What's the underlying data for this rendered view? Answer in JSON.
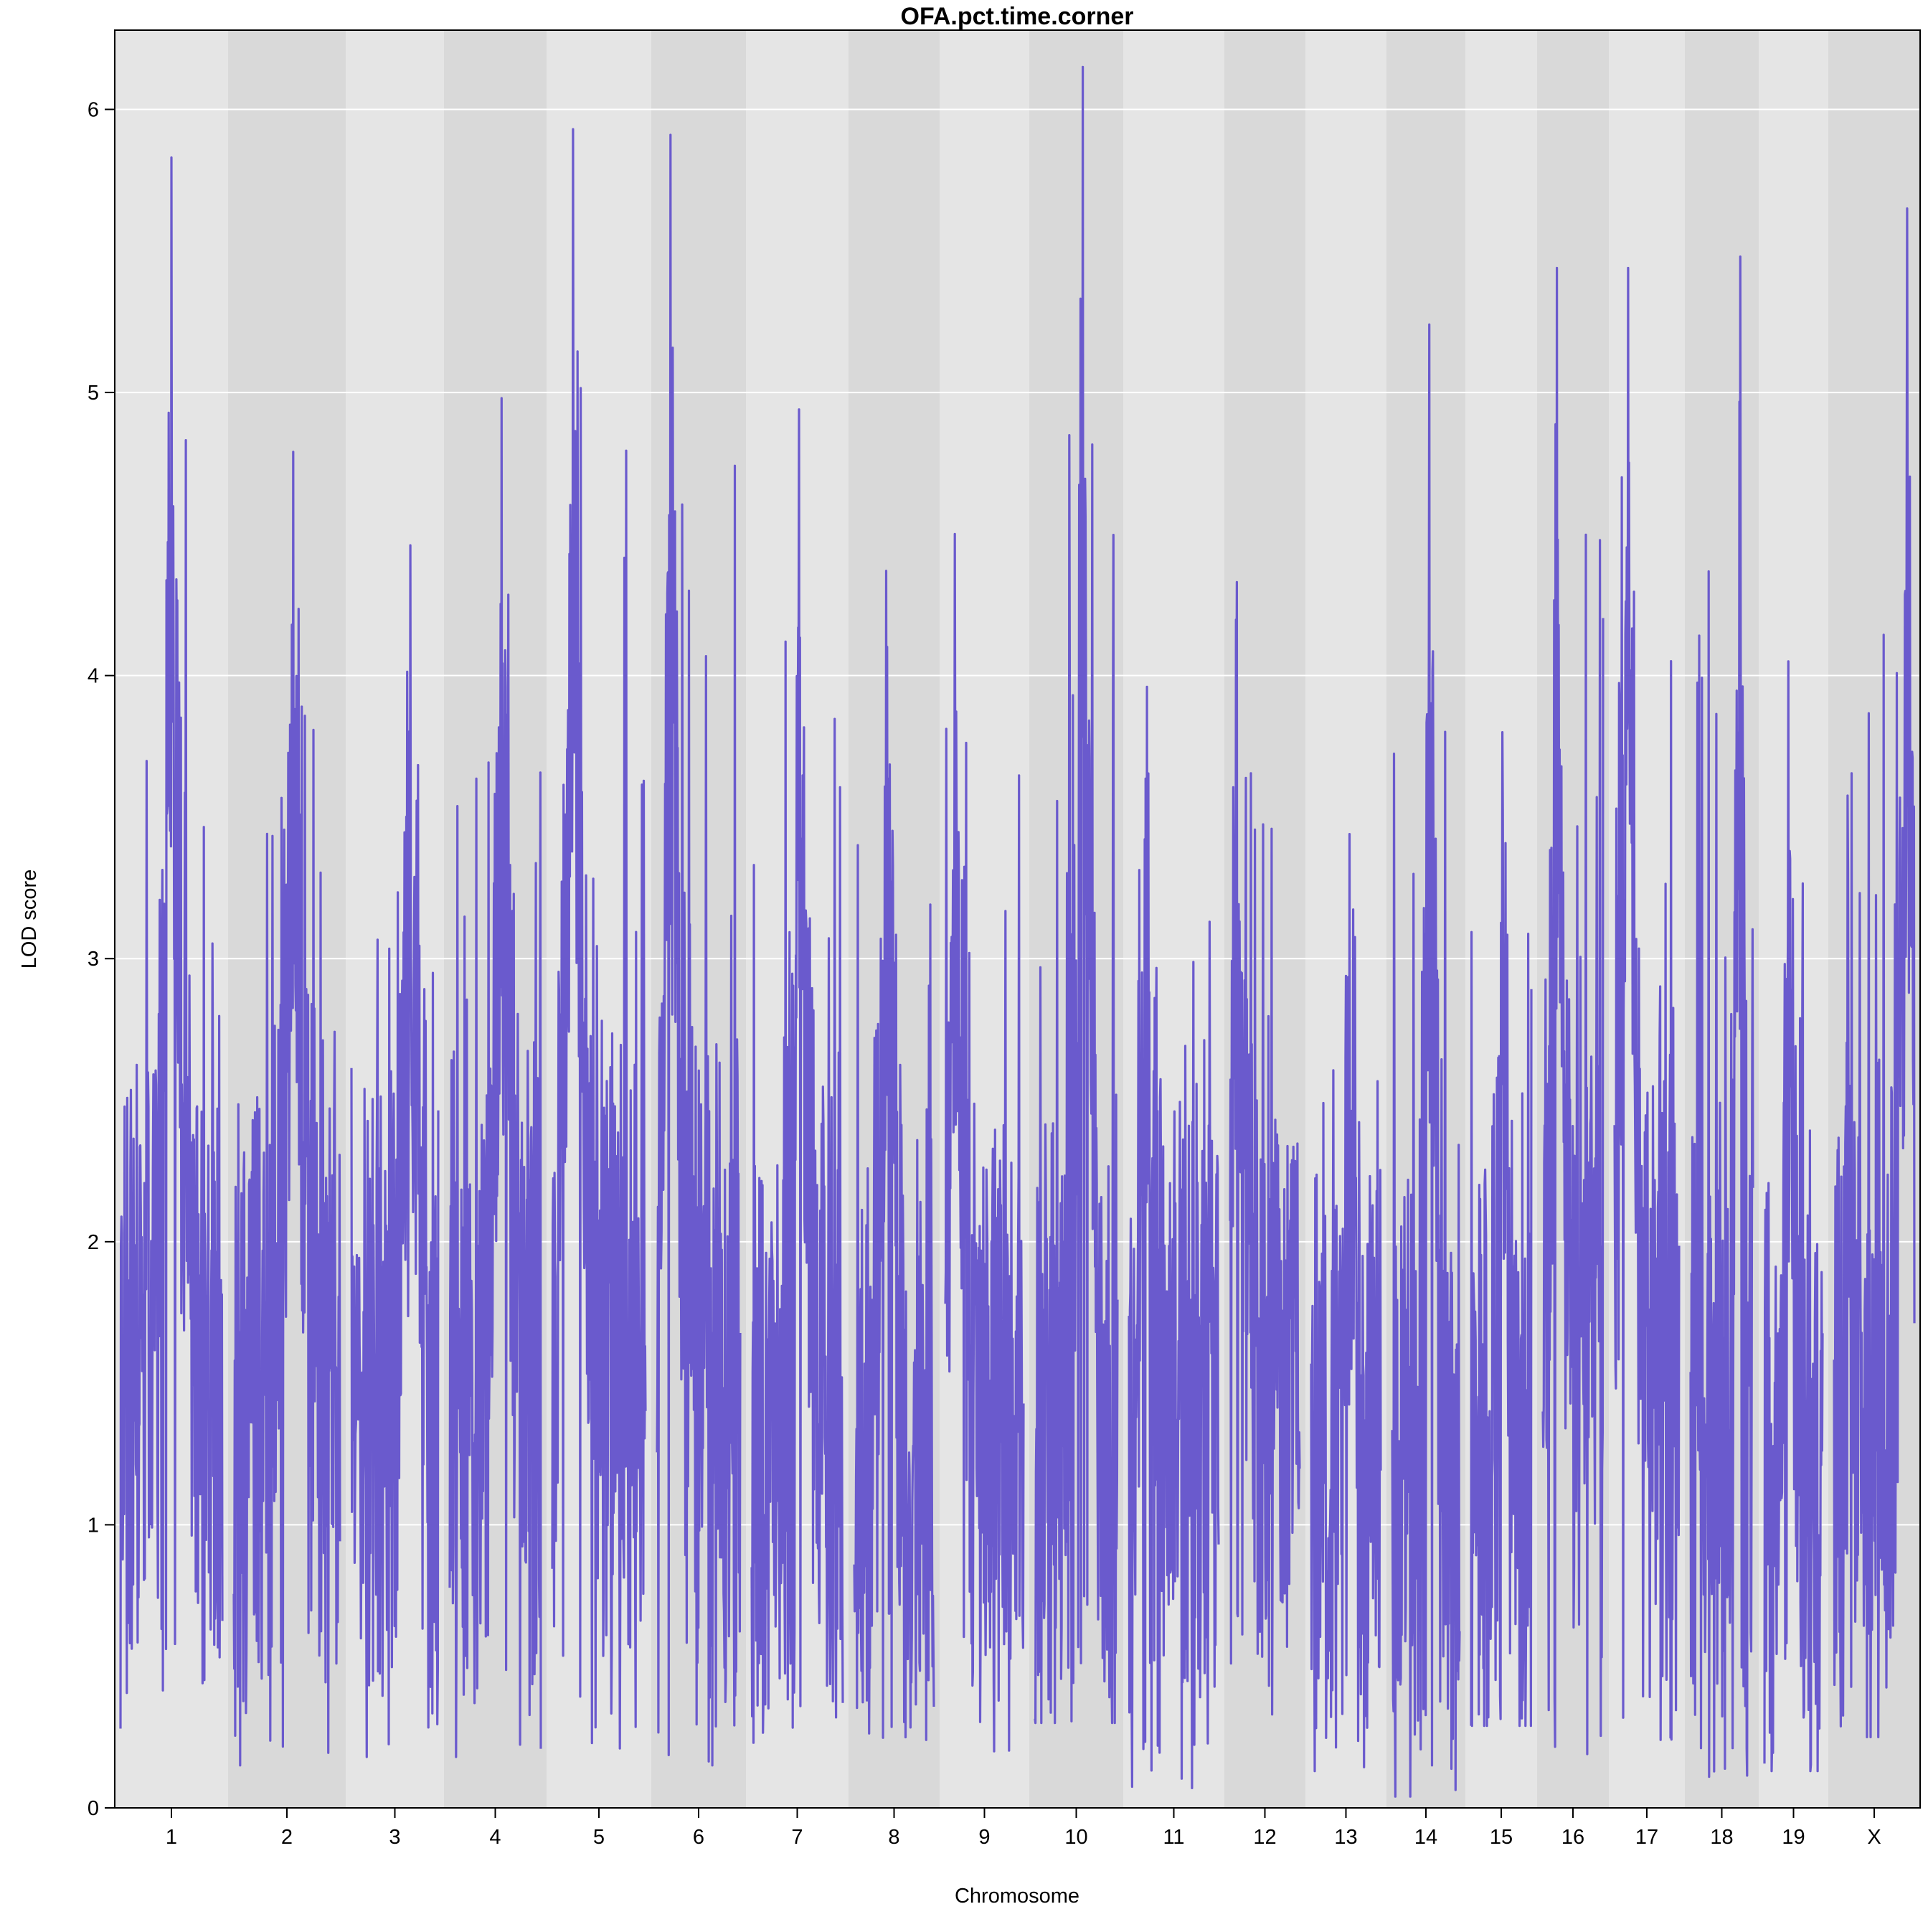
{
  "chart_data": {
    "type": "line",
    "title": "OFA.pct.time.corner",
    "xlabel": "Chromosome",
    "ylabel": "LOD score",
    "ylim": [
      0,
      6.28
    ],
    "yticks": [
      0,
      1,
      2,
      3,
      4,
      5,
      6
    ],
    "grid": true,
    "line_color": "#6a5acd",
    "band_colors": [
      "#e5e5e5",
      "#d9d9d9"
    ],
    "chromosomes": [
      {
        "label": "1",
        "peak": 5.83,
        "peak_pos": 0.5,
        "low": 0.28,
        "base": 1.6
      },
      {
        "label": "2",
        "peak": 4.79,
        "peak_pos": 0.56,
        "low": 0.15,
        "base": 1.5
      },
      {
        "label": "3",
        "peak": 4.46,
        "peak_pos": 0.68,
        "low": 0.18,
        "base": 1.4
      },
      {
        "label": "4",
        "peak": 4.98,
        "peak_pos": 0.57,
        "low": 0.18,
        "base": 1.5
      },
      {
        "label": "5",
        "peak": 5.93,
        "peak_pos": 0.22,
        "low": 0.21,
        "base": 1.7
      },
      {
        "label": "6",
        "peak": 5.91,
        "peak_pos": 0.16,
        "low": 0.15,
        "base": 1.6
      },
      {
        "label": "7",
        "peak": 4.94,
        "peak_pos": 0.52,
        "low": 0.23,
        "base": 1.3
      },
      {
        "label": "8",
        "peak": 4.37,
        "peak_pos": 0.4,
        "low": 0.24,
        "base": 1.3
      },
      {
        "label": "9",
        "peak": 4.5,
        "peak_pos": 0.12,
        "low": 0.2,
        "base": 1.4
      },
      {
        "label": "10",
        "peak": 6.15,
        "peak_pos": 0.58,
        "low": 0.3,
        "base": 1.3
      },
      {
        "label": "11",
        "peak": 3.96,
        "peak_pos": 0.2,
        "low": 0.07,
        "base": 1.4
      },
      {
        "label": "12",
        "peak": 4.33,
        "peak_pos": 0.1,
        "low": 0.33,
        "base": 1.6
      },
      {
        "label": "13",
        "peak": 3.44,
        "peak_pos": 0.55,
        "low": 0.13,
        "base": 1.2
      },
      {
        "label": "14",
        "peak": 5.24,
        "peak_pos": 0.55,
        "low": 0.04,
        "base": 1.2
      },
      {
        "label": "15",
        "peak": 3.8,
        "peak_pos": 0.52,
        "low": 0.29,
        "base": 1.2
      },
      {
        "label": "16",
        "peak": 5.44,
        "peak_pos": 0.23,
        "low": 0.19,
        "base": 1.7
      },
      {
        "label": "17",
        "peak": 5.44,
        "peak_pos": 0.21,
        "low": 0.24,
        "base": 1.8
      },
      {
        "label": "18",
        "peak": 5.48,
        "peak_pos": 0.8,
        "low": 0.11,
        "base": 1.3
      },
      {
        "label": "19",
        "peak": 4.05,
        "peak_pos": 0.41,
        "low": 0.13,
        "base": 1.1
      },
      {
        "label": "X",
        "peak": 5.65,
        "peak_pos": 0.91,
        "low": 0.25,
        "base": 1.4
      }
    ]
  }
}
